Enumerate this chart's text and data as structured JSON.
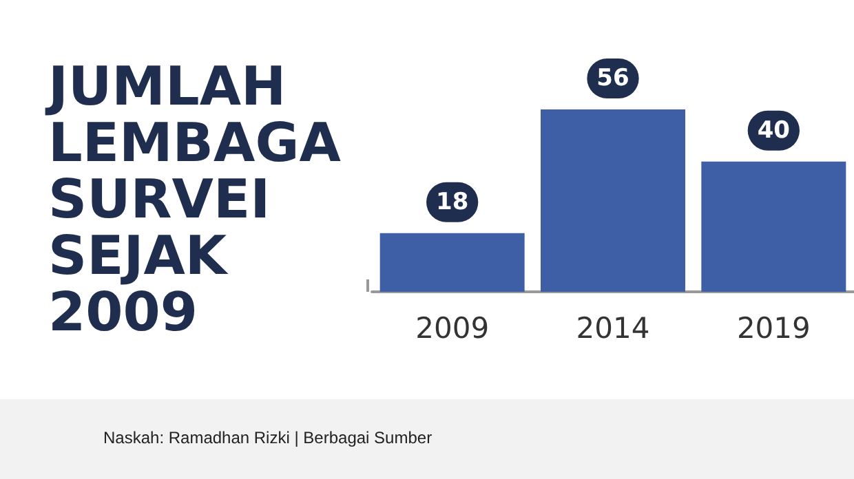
{
  "chart_data": {
    "type": "bar",
    "title": "JUMLAH LEMBAGA SURVEI SEJAK 2009",
    "categories": [
      "2009",
      "2014",
      "2019"
    ],
    "values": [
      18,
      56,
      40
    ],
    "color": "#3e5fa6",
    "data_labels": true,
    "annotations": [
      "Naskah: Ramadhan Rizki | Berbagai Sumber"
    ]
  }
}
